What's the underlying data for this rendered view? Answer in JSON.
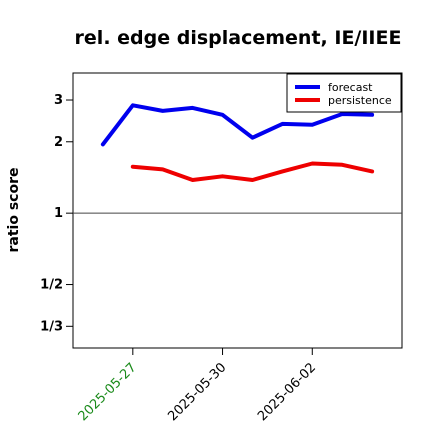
{
  "chart_data": {
    "type": "line",
    "title": "rel. edge displacement, IE/IIEE",
    "xlabel": "",
    "ylabel": "ratio score",
    "y_scale": "log",
    "ylim": [
      0.27,
      3.9
    ],
    "y_ticks": [
      {
        "value": 3,
        "label": "3"
      },
      {
        "value": 2,
        "label": "2"
      },
      {
        "value": 1,
        "label": "1"
      },
      {
        "value": 0.5,
        "label": "1/2"
      },
      {
        "value": 0.3333,
        "label": "1/3"
      }
    ],
    "x_range": [
      "2025-05-25",
      "2025-06-05"
    ],
    "x_ticks": [
      {
        "date": "2025-05-27",
        "label": "2025-05-27",
        "color": "#1a8a1a"
      },
      {
        "date": "2025-05-30",
        "label": "2025-05-30",
        "color": "#000000"
      },
      {
        "date": "2025-06-02",
        "label": "2025-06-02",
        "color": "#000000"
      }
    ],
    "reference_line": 1,
    "grid": false,
    "legend_position": "top-right",
    "series": [
      {
        "name": "forecast",
        "color": "#0000ee",
        "x": [
          "2025-05-26",
          "2025-05-27",
          "2025-05-28",
          "2025-05-29",
          "2025-05-30",
          "2025-05-31",
          "2025-06-01",
          "2025-06-02",
          "2025-06-03",
          "2025-06-04"
        ],
        "y": [
          1.95,
          2.85,
          2.7,
          2.78,
          2.6,
          2.08,
          2.38,
          2.36,
          2.62,
          2.6
        ]
      },
      {
        "name": "persistence",
        "color": "#ee0000",
        "x": [
          "2025-05-27",
          "2025-05-28",
          "2025-05-29",
          "2025-05-30",
          "2025-05-31",
          "2025-06-01",
          "2025-06-02",
          "2025-06-03",
          "2025-06-04"
        ],
        "y": [
          1.57,
          1.53,
          1.38,
          1.43,
          1.38,
          1.5,
          1.62,
          1.6,
          1.5
        ]
      }
    ]
  }
}
